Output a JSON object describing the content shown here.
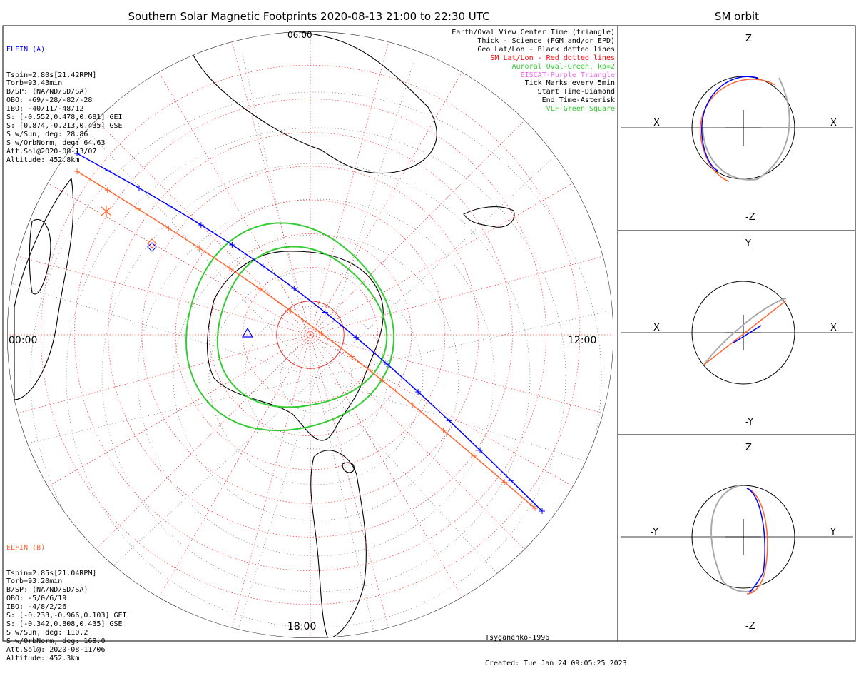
{
  "title": "Southern Solar Magnetic Footprints 2020-08-13 21:00 to 22:30 UTC",
  "sm_title": "SM orbit",
  "elfin_a": {
    "name": "ELFIN (A)",
    "color": "#0000ff",
    "lines": [
      "Tspin=2.80s[21.42RPM]",
      "Torb=93.43min",
      "B/SP: (NA/ND/SD/SA)",
      "OBO: -69/-28/-82/-28",
      "IBO: -40/11/-48/12",
      "S: [-0.552,0.478,0.681] GEI",
      "S: [0.874,-0.213,0.435] GSE",
      "S w/Sun, deg: 28.86",
      "S w/OrbNorm, deg: 64.63",
      "Att.Sol@2020-08-13/07",
      "Altitude: 452.8km"
    ]
  },
  "elfin_b": {
    "name": "ELFIN (B)",
    "color": "#ff6633",
    "lines": [
      "Tspin=2.85s[21.04RPM]",
      "Torb=93.20min",
      "B/SP: (NA/ND/SD/SA)",
      "OBO: -5/0/6/19",
      "IBO: -4/8/2/26",
      "S: [-0.233,-0.966,0.103] GEI",
      "S: [-0.342,0.808,0.435] GSE",
      "S w/Sun, deg: 110.2",
      "S w/OrbNorm, deg: 168.0",
      "Att.Sol@: 2020-08-11/06",
      "Altitude: 452.3km"
    ]
  },
  "legend": [
    {
      "text": "Earth/Oval View Center Time (triangle)",
      "color": "#000000"
    },
    {
      "text": "Thick - Science (FGM and/or EPD)",
      "color": "#000000"
    },
    {
      "text": "Geo Lat/Lon - Black dotted lines",
      "color": "#000000"
    },
    {
      "text": "SM Lat/Lon - Red dotted lines",
      "color": "#ff0000"
    },
    {
      "text": "Auroral Oval-Green, kp=2",
      "color": "#33cc33"
    },
    {
      "text": "EISCAT-Purple Triangle",
      "color": "#ee66ee"
    },
    {
      "text": "Tick Marks every 5min",
      "color": "#000000"
    },
    {
      "text": "Start Time-Diamond",
      "color": "#000000"
    },
    {
      "text": "End Time-Asterisk",
      "color": "#000000"
    },
    {
      "text": "VLF-Green Square",
      "color": "#33cc33"
    }
  ],
  "footer": [
    "Tsyganenko-1996",
    "Created: Tue Jan 24 09:05:25 2023"
  ],
  "mlt_labels": {
    "left": "00:00",
    "right": "12:00",
    "bottom": "18:00",
    "top": "06:00"
  },
  "chart_data": {
    "type": "polar-map",
    "projection": "southern-hemisphere-polar",
    "sm_grid": {
      "latitude_rings_deg": [
        -80,
        -70,
        -60,
        -50,
        -40,
        -30,
        -20,
        -10,
        0
      ],
      "mlt_meridians_hours": [
        0,
        1,
        2,
        3,
        4,
        5,
        6,
        7,
        8,
        9,
        10,
        11,
        12,
        13,
        14,
        15,
        16,
        17,
        18,
        19,
        20,
        21,
        22,
        23
      ]
    },
    "auroral_oval": {
      "kp": 2,
      "color": "#33cc33",
      "boundaries": [
        "poleward",
        "equatorward"
      ]
    },
    "tracks": [
      {
        "name": "ELFIN (A)",
        "color": "#0000ff",
        "start": "2020-08-13 21:00",
        "end": "2020-08-13 22:30",
        "tick_interval_min": 5
      },
      {
        "name": "ELFIN (B)",
        "color": "#ff6633",
        "start": "2020-08-13 21:00",
        "end": "2020-08-13 22:30",
        "tick_interval_min": 5
      }
    ],
    "sm_orbit_panels": [
      {
        "name": "X-Z",
        "axes": {
          "left": "-X",
          "right": "X",
          "top": "Z",
          "bottom": "-Z"
        }
      },
      {
        "name": "X-Y",
        "axes": {
          "left": "-X",
          "right": "X",
          "top": "Y",
          "bottom": "-Y"
        }
      },
      {
        "name": "Y-Z",
        "axes": {
          "left": "-Y",
          "right": "Y",
          "top": "Z",
          "bottom": "-Z"
        }
      }
    ]
  }
}
